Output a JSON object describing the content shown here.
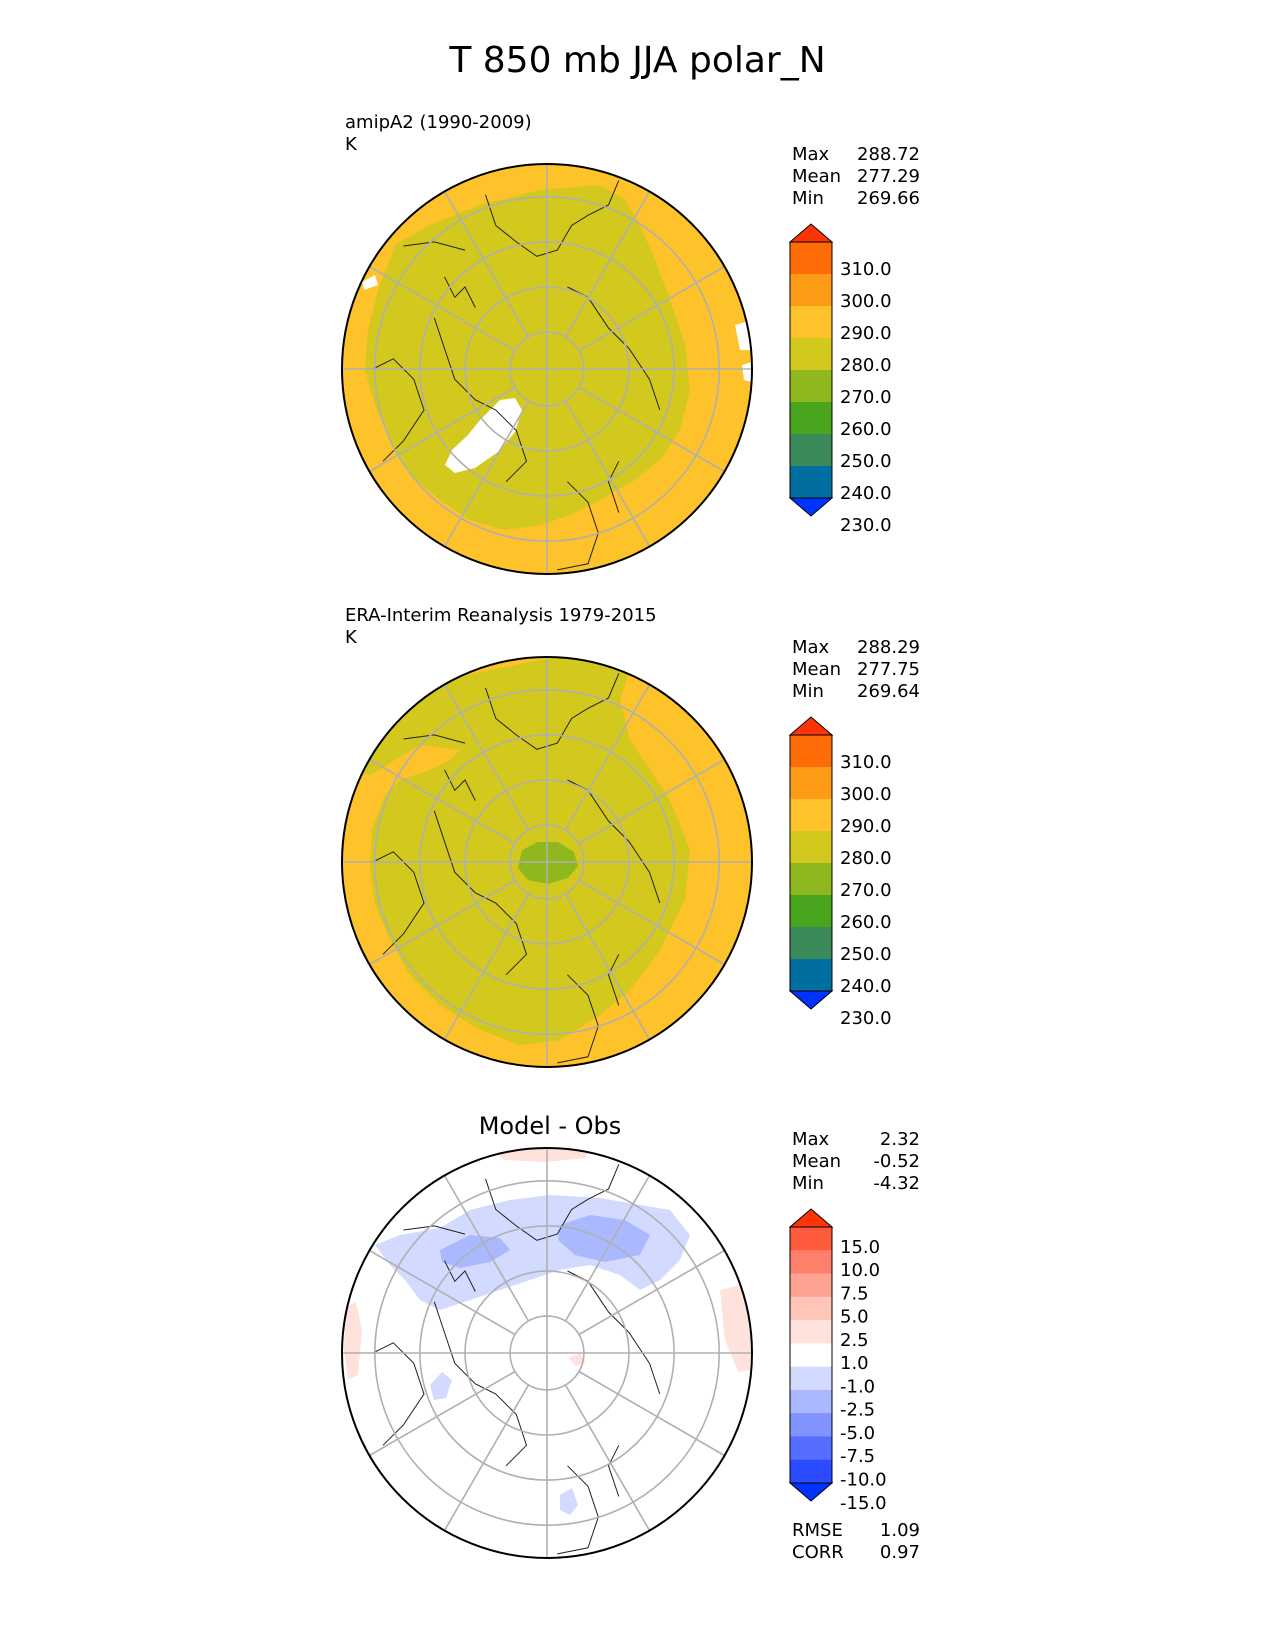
{
  "figure": {
    "title": "T 850 mb JJA polar_N"
  },
  "chart_data": [
    {
      "type": "heatmap",
      "projection": "north-polar-stereographic",
      "label_line1": "amipA2 (1990-2009)",
      "label_line2": "K",
      "stats": {
        "Max": "288.72",
        "Mean": "277.29",
        "Min": "269.66"
      },
      "colorbar": {
        "levels": [
          "230.0",
          "240.0",
          "250.0",
          "260.0",
          "270.0",
          "280.0",
          "290.0",
          "300.0",
          "310.0"
        ],
        "colors": [
          "#0033ff",
          "#006e9e",
          "#3a8a5a",
          "#4aa51e",
          "#8fb81f",
          "#d2c81e",
          "#fec22a",
          "#fe9b16",
          "#fe6c08",
          "#fe3307"
        ],
        "extend": "both"
      },
      "background_color": "#fec22a",
      "inner_color": "#d2c81e"
    },
    {
      "type": "heatmap",
      "projection": "north-polar-stereographic",
      "label_line1": "ERA-Interim Reanalysis 1979-2015",
      "label_line2": "K",
      "stats": {
        "Max": "288.29",
        "Mean": "277.75",
        "Min": "269.64"
      },
      "colorbar": {
        "levels": [
          "230.0",
          "240.0",
          "250.0",
          "260.0",
          "270.0",
          "280.0",
          "290.0",
          "300.0",
          "310.0"
        ],
        "colors": [
          "#0033ff",
          "#006e9e",
          "#3a8a5a",
          "#4aa51e",
          "#8fb81f",
          "#d2c81e",
          "#fec22a",
          "#fe9b16",
          "#fe6c08",
          "#fe3307"
        ],
        "extend": "both"
      },
      "background_color": "#fec22a",
      "inner_color": "#d2c81e",
      "pole_color": "#8fb81f"
    },
    {
      "type": "heatmap",
      "projection": "north-polar-stereographic",
      "title": "Model - Obs",
      "stats": {
        "Max": "2.32",
        "Mean": "-0.52",
        "Min": "-4.32"
      },
      "metrics": {
        "RMSE": "1.09",
        "CORR": "0.97"
      },
      "colorbar": {
        "levels": [
          "15.0",
          "10.0",
          "7.5",
          "5.0",
          "2.5",
          "1.0",
          "-1.0",
          "-2.5",
          "-5.0",
          "-7.5",
          "-10.0",
          "-15.0"
        ],
        "colors": [
          "#fe3307",
          "#fe5a3c",
          "#fe7f6a",
          "#fea292",
          "#fec5b8",
          "#fee2db",
          "#ffffff",
          "#d3daff",
          "#aab8ff",
          "#8093ff",
          "#566eff",
          "#2a4bff",
          "#0033ff"
        ],
        "extend": "both"
      },
      "background_color": "#ffffff"
    }
  ]
}
